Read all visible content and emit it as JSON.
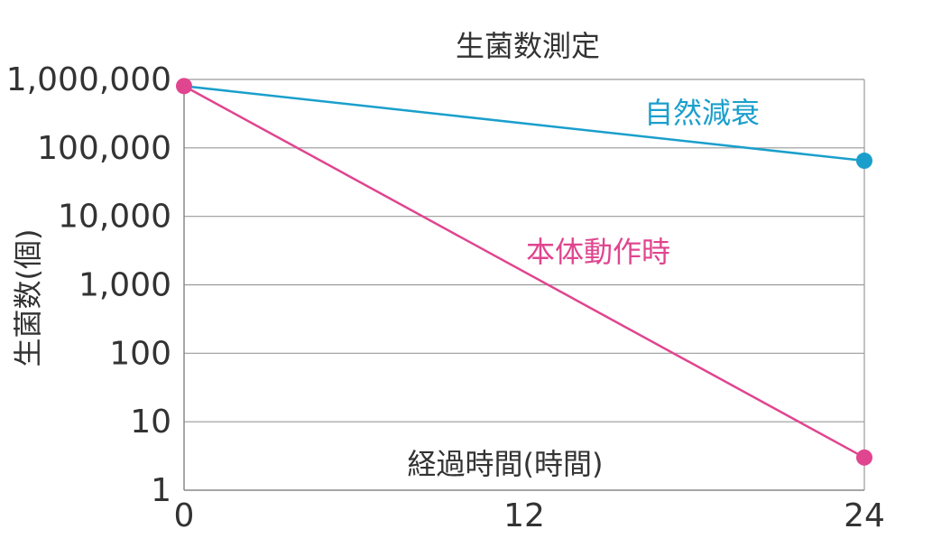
{
  "chart_data": {
    "type": "line",
    "title": "生菌数測定",
    "xlabel": "経過時間(時間)",
    "ylabel": "生菌数(個)",
    "y_scale": "log",
    "ylim": [
      1,
      1000000
    ],
    "xlim": [
      0,
      24
    ],
    "grid": true,
    "x_ticks": [
      {
        "value": 0,
        "label": "0"
      },
      {
        "value": 12,
        "label": "12"
      },
      {
        "value": 24,
        "label": "24"
      }
    ],
    "y_ticks": [
      {
        "value": 1,
        "label": "1"
      },
      {
        "value": 10,
        "label": "10"
      },
      {
        "value": 100,
        "label": "100"
      },
      {
        "value": 1000,
        "label": "1,000"
      },
      {
        "value": 10000,
        "label": "10,000"
      },
      {
        "value": 100000,
        "label": "100,000"
      },
      {
        "value": 1000000,
        "label": "1,000,000"
      }
    ],
    "series": [
      {
        "name": "自然減衰",
        "color": "#1a9fcc",
        "x": [
          0,
          24
        ],
        "y": [
          800000,
          65000
        ],
        "show_end_marker_only": true
      },
      {
        "name": "本体動作時",
        "color": "#e0458f",
        "x": [
          0,
          24
        ],
        "y": [
          800000,
          3
        ],
        "show_end_marker_only": false
      }
    ]
  }
}
